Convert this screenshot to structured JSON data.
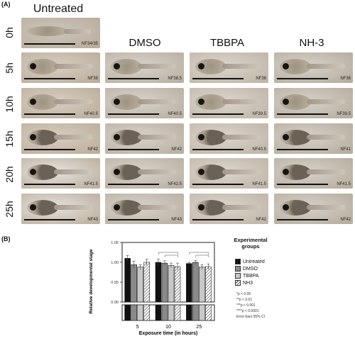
{
  "panel_a_label": "(A)",
  "panel_b_label": "(B)",
  "columns": [
    "Untreated",
    "DMSO",
    "TBBPA",
    "NH-3"
  ],
  "rows": [
    "0h",
    "5h",
    "10h",
    "15h",
    "20h",
    "25h"
  ],
  "stages": {
    "untreated": [
      "NF34/35",
      "NF39",
      "NF40.5",
      "NF42",
      "NF41.5",
      "NF43"
    ],
    "dmso": [
      "",
      "NF38.5",
      "NF40.5",
      "NF42",
      "NF42.5",
      "NF43"
    ],
    "tbbpa": [
      "",
      "NF36",
      "NF39.5",
      "NF40.5",
      "NF41.5",
      "NF42"
    ],
    "nh3": [
      "",
      "NF36",
      "NF39.5",
      "NF41",
      "NF41.5",
      "NF42"
    ]
  },
  "legend": {
    "title_line1": "Experimental",
    "title_line2": "groups",
    "items": [
      "Untreated",
      "DMSO",
      "TBBPA",
      "NH3"
    ]
  },
  "significance_notes": [
    "*p < 0.05",
    "**p < 0.01",
    "***p < 0.001",
    "****p < 0.0001",
    "Error bars 95% CI"
  ],
  "chart_data": {
    "type": "bar",
    "xlabel": "Exposure time (in hours)",
    "ylabel": "Relative developmental stage",
    "categories": [
      "5",
      "10",
      "25"
    ],
    "yticks": [
      "0.90",
      "0.95",
      "1.00",
      "1.05"
    ],
    "ylim": [
      0.9,
      1.05
    ],
    "axis_break": true,
    "series": [
      {
        "name": "Untreated",
        "values": [
          1.01,
          1.0,
          0.997
        ],
        "err": [
          0.007,
          0.008,
          0.003
        ],
        "color": "#111111",
        "pattern": "solid"
      },
      {
        "name": "DMSO",
        "values": [
          0.994,
          0.998,
          1.0
        ],
        "err": [
          0.009,
          0.006,
          0.005
        ],
        "color": "#8a8a8a",
        "pattern": "solid"
      },
      {
        "name": "TBBPA",
        "values": [
          0.988,
          0.992,
          0.988
        ],
        "err": [
          0.006,
          0.006,
          0.006
        ],
        "color": "#c8c8c8",
        "pattern": "solid"
      },
      {
        "name": "NH3",
        "values": [
          1.0,
          0.989,
          0.989
        ],
        "err": [
          0.008,
          0.009,
          0.007
        ],
        "color": "#ffffff",
        "pattern": "hatch"
      }
    ],
    "grid": false,
    "legend": "right"
  }
}
